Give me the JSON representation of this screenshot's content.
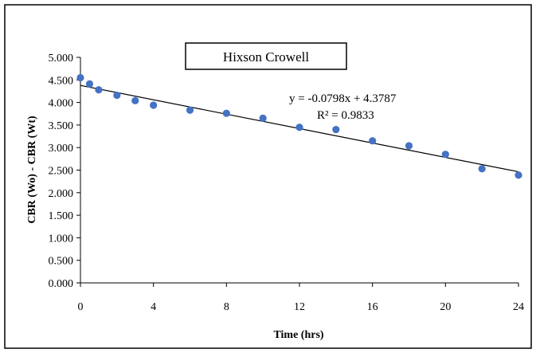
{
  "chart_data": {
    "type": "scatter",
    "title": "Hixson Crowell",
    "xlabel": "Time (hrs)",
    "ylabel": "CBR (Wo) - CBR (Wt)",
    "xlim": [
      0,
      24
    ],
    "ylim": [
      0,
      5
    ],
    "xticks": [
      0,
      4,
      8,
      12,
      16,
      20,
      24
    ],
    "yticks": [
      "0.000",
      "0.500",
      "1.000",
      "1.500",
      "2.000",
      "2.500",
      "3.000",
      "3.500",
      "4.000",
      "4.500",
      "5.000"
    ],
    "grid": false,
    "series": [
      {
        "marker_color": "#4472C4",
        "points": [
          {
            "x": 0,
            "y": 4.55
          },
          {
            "x": 0.5,
            "y": 4.41
          },
          {
            "x": 1,
            "y": 4.28
          },
          {
            "x": 2,
            "y": 4.16
          },
          {
            "x": 3,
            "y": 4.04
          },
          {
            "x": 4,
            "y": 3.94
          },
          {
            "x": 6,
            "y": 3.83
          },
          {
            "x": 8,
            "y": 3.76
          },
          {
            "x": 10,
            "y": 3.65
          },
          {
            "x": 12,
            "y": 3.45
          },
          {
            "x": 14,
            "y": 3.4
          },
          {
            "x": 16,
            "y": 3.15
          },
          {
            "x": 18,
            "y": 3.04
          },
          {
            "x": 20,
            "y": 2.85
          },
          {
            "x": 22,
            "y": 2.53
          },
          {
            "x": 24,
            "y": 2.39
          }
        ]
      }
    ],
    "trendline": {
      "slope": -0.0798,
      "intercept": 4.3787,
      "equation": "y = -0.0798x + 4.3787",
      "r_squared": "R² = 0.9833",
      "color": "#000000"
    }
  }
}
